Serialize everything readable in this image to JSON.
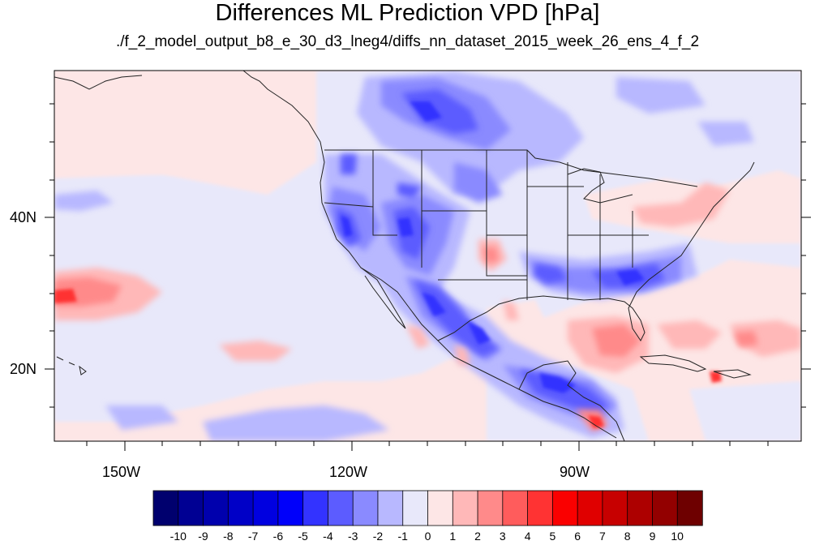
{
  "title": "Differences ML Prediction VPD [hPa]",
  "subtitle": "./f_2_model_output_b8_e_30_d3_lneg4/diffs_nn_dataset_2015_week_26_ens_4_f_2",
  "map": {
    "extent": {
      "lon_min": -160,
      "lon_max": -60,
      "lat_min": 11,
      "lat_max": 60
    },
    "lon_labels": [
      "150W",
      "120W",
      "90W"
    ],
    "lat_labels": [
      "40N",
      "20N"
    ],
    "colors": {
      "frame": "#000000",
      "boundary": "#222222",
      "ocean_bg": "#fde6e6"
    }
  },
  "colorbar": {
    "labels": [
      "-10",
      "-9",
      "-8",
      "-7",
      "-6",
      "-5",
      "-4",
      "-3",
      "-2",
      "-1",
      "0",
      "1",
      "2",
      "3",
      "4",
      "5",
      "6",
      "7",
      "8",
      "9",
      "10"
    ],
    "colors": [
      "#00006e",
      "#000093",
      "#0000ad",
      "#0000c7",
      "#0000e0",
      "#0000fa",
      "#3333ff",
      "#5c5cff",
      "#8a8aff",
      "#b8b8ff",
      "#e8e8fa",
      "#fde6e6",
      "#ffb8b8",
      "#ff8a8a",
      "#ff5c5c",
      "#ff3333",
      "#fa0000",
      "#e00000",
      "#c70000",
      "#ad0000",
      "#930000",
      "#6e0000"
    ]
  }
}
